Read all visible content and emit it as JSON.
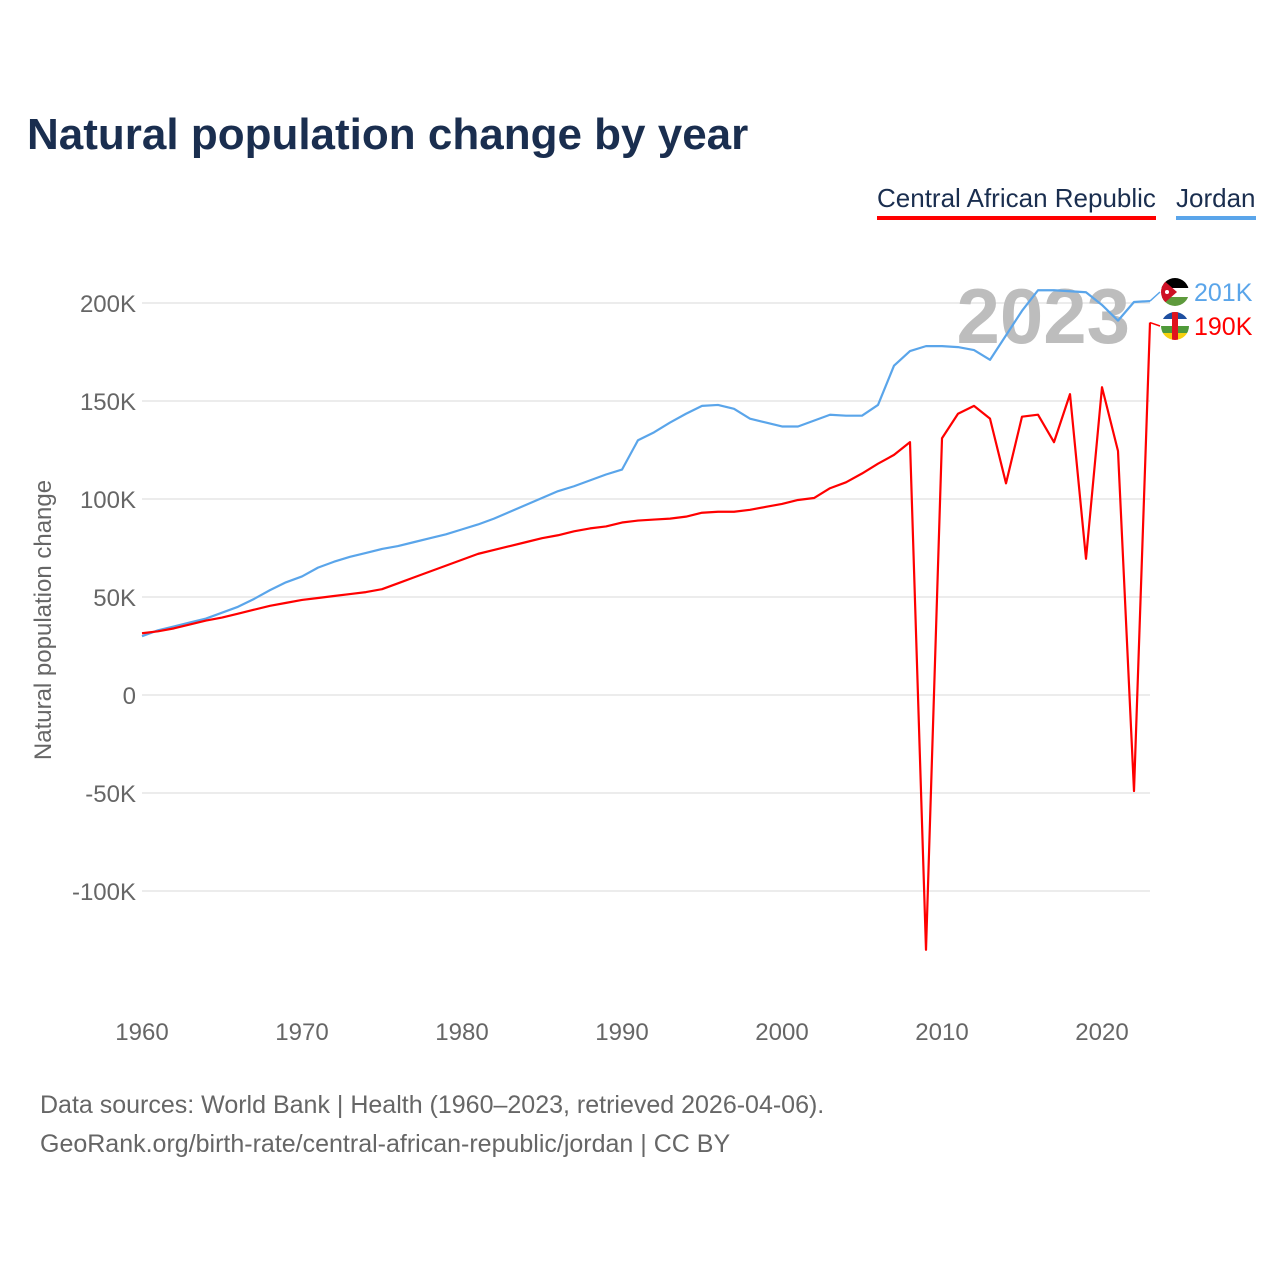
{
  "title": "Natural population change by year",
  "legend": [
    {
      "label": "Central African Republic",
      "color": "#ff0000"
    },
    {
      "label": "Jordan",
      "color": "#5aa5ea"
    }
  ],
  "source_line1": "Data sources: World Bank | Health (1960–2023, retrieved 2026-04-06).",
  "source_line2": "GeoRank.org/birth-rate/central-african-republic/jordan | CC BY",
  "chart_data": {
    "type": "line",
    "title": "Natural population change by year",
    "ylabel": "Natural population change",
    "xlabel": "",
    "ylim": [
      -150000,
      220000
    ],
    "xlim": [
      1960,
      2023
    ],
    "yticks": [
      {
        "v": 200000,
        "label": "200K"
      },
      {
        "v": 150000,
        "label": "150K"
      },
      {
        "v": 100000,
        "label": "100K"
      },
      {
        "v": 50000,
        "label": "50K"
      },
      {
        "v": 0,
        "label": "0"
      },
      {
        "v": -50000,
        "label": "-50K"
      },
      {
        "v": -100000,
        "label": "-100K"
      }
    ],
    "xticks": [
      1960,
      1970,
      1980,
      1990,
      2000,
      2010,
      2020
    ],
    "year_label": "2023",
    "x_start": 1960,
    "series": [
      {
        "name": "Jordan",
        "color": "#5aa5ea",
        "end_label": "201K",
        "flag": "jordan-flag",
        "values": [
          30,
          33,
          35,
          37,
          39,
          42,
          45,
          49,
          53.5,
          57.5,
          60.5,
          65,
          68,
          70.5,
          72.5,
          74.5,
          76,
          78,
          80,
          82,
          84.5,
          87,
          90,
          93.5,
          97,
          100.5,
          104,
          106.5,
          109.5,
          112.5,
          115,
          130,
          134,
          139,
          143.5,
          147.5,
          148,
          146,
          141,
          139,
          137,
          137,
          140,
          143,
          142.5,
          142.5,
          148,
          168,
          175.5,
          178,
          178,
          177.5,
          176,
          171,
          183.5,
          196,
          206.5,
          206.5,
          206,
          205.5,
          199,
          191,
          200.5,
          201
        ]
      },
      {
        "name": "Central African Republic",
        "color": "#ff0000",
        "end_label": "190K",
        "flag": "car-flag",
        "values": [
          31.5,
          32.5,
          34,
          36,
          38,
          39.5,
          41.5,
          43.5,
          45.5,
          47,
          48.5,
          49.5,
          50.5,
          51.5,
          52.5,
          54,
          57,
          60,
          63,
          66,
          69,
          72,
          74,
          76,
          78,
          80,
          81.5,
          83.5,
          85,
          86,
          88,
          89,
          89.5,
          90,
          91,
          93,
          93.5,
          93.5,
          94.5,
          96,
          97.5,
          99.5,
          100.5,
          105.5,
          108.5,
          113,
          118,
          122.5,
          129,
          -130,
          131,
          143.5,
          147.5,
          141,
          108,
          142,
          143,
          129,
          153.5,
          69.5,
          157,
          124.5,
          -49,
          190
        ]
      }
    ]
  }
}
